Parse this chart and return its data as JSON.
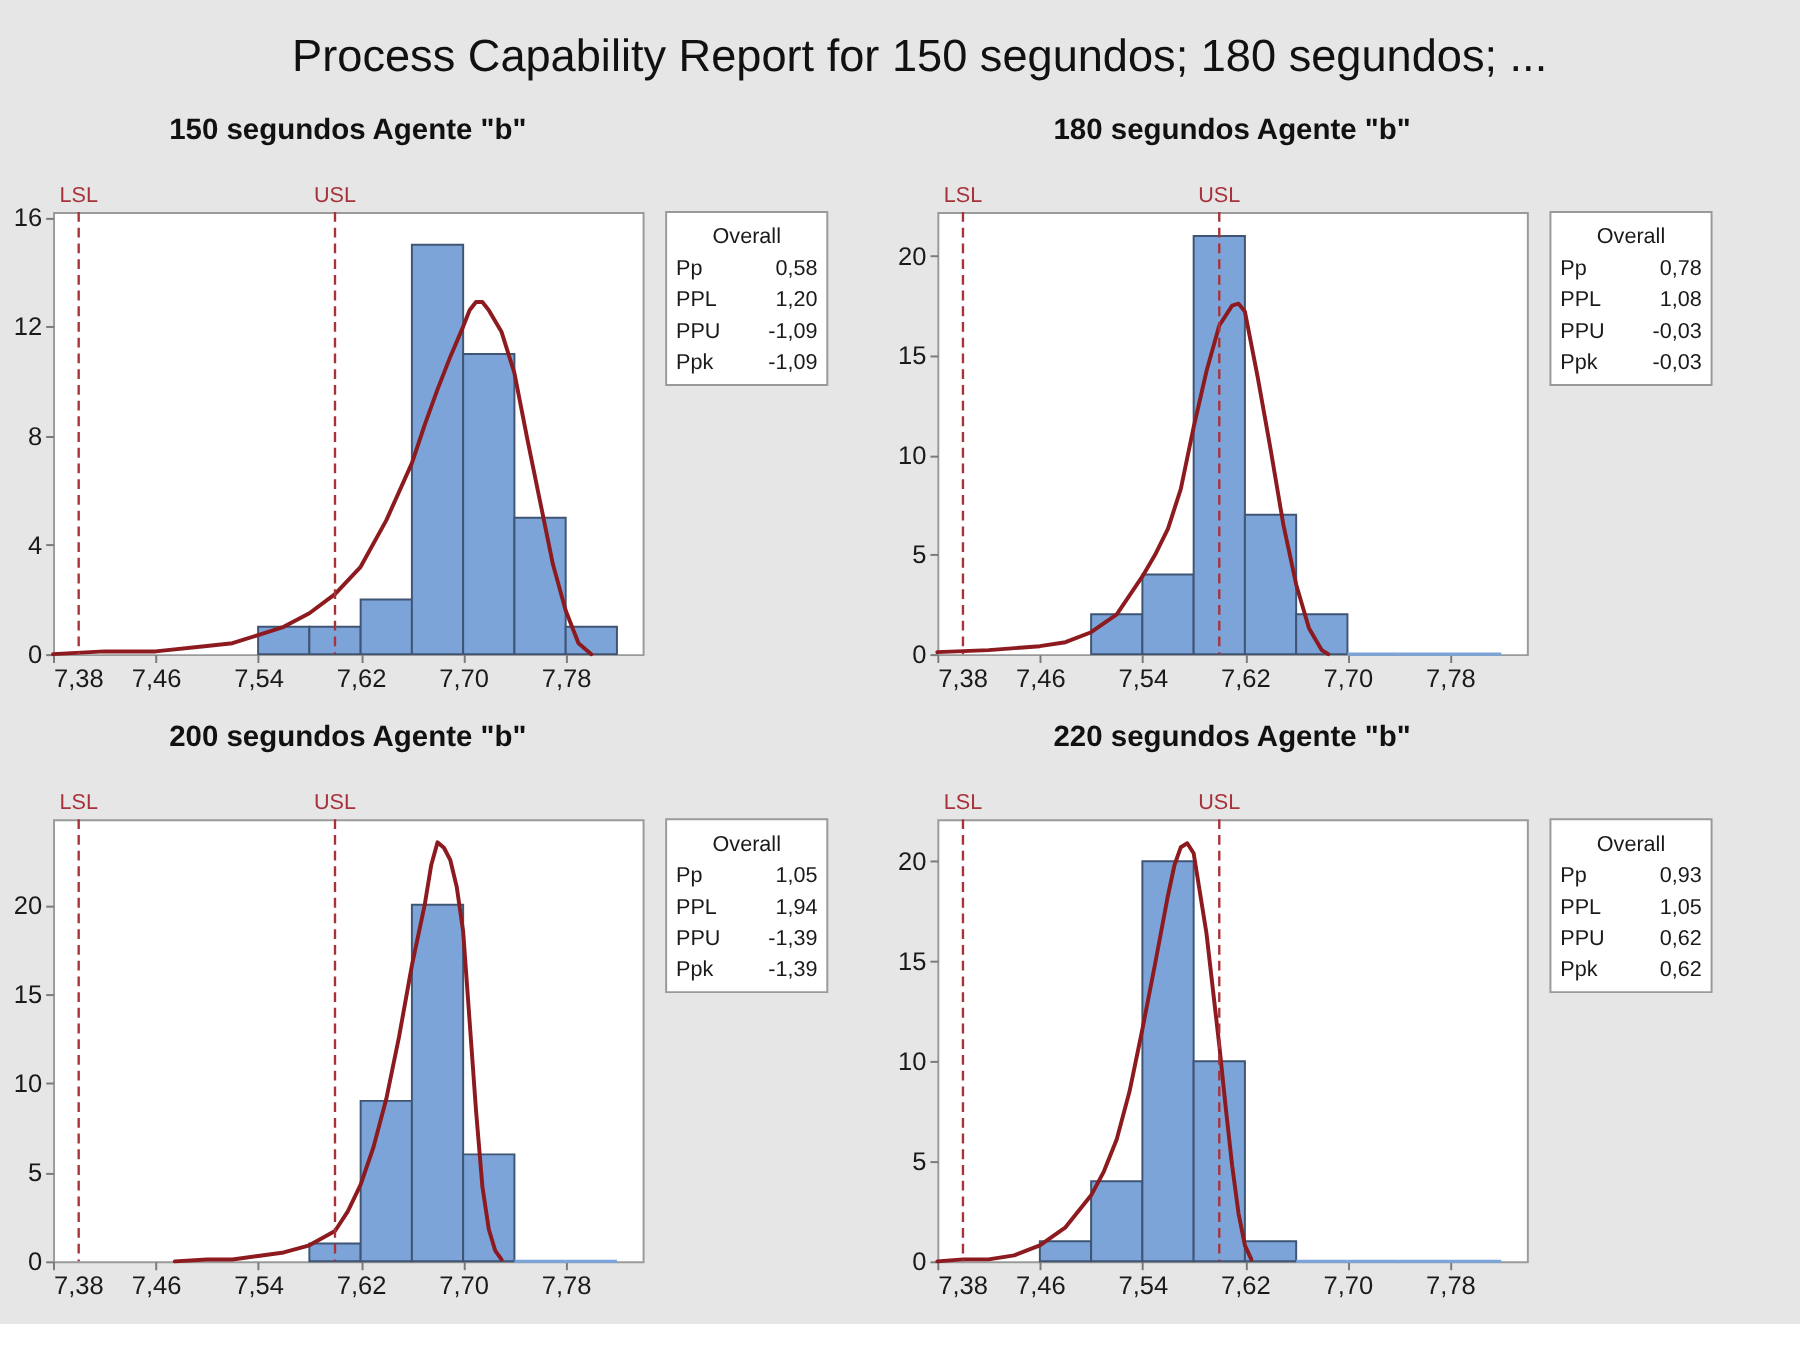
{
  "chart_data": [
    {
      "type": "other",
      "title": "Process Capability Report for 150 segundos; 180 segundos; ..."
    },
    {
      "type": "histogram",
      "title": "150 segundos Agente \"b\"",
      "series": [
        {
          "type": "histogram",
          "color": "#7ca4d9",
          "bins": [
            7.54,
            7.58,
            7.62,
            7.66,
            7.7,
            7.74,
            7.78,
            7.82
          ],
          "values": [
            1,
            1,
            2,
            15,
            11,
            5,
            1
          ]
        },
        {
          "type": "line",
          "color": "#8c1a1f",
          "x": [
            7.38,
            7.42,
            7.46,
            7.5,
            7.52,
            7.54,
            7.56,
            7.58,
            7.6,
            7.62,
            7.64,
            7.66,
            7.67,
            7.68,
            7.69,
            7.7,
            7.705,
            7.71,
            7.715,
            7.72,
            7.73,
            7.74,
            7.75,
            7.76,
            7.77,
            7.78,
            7.79,
            7.8
          ],
          "values": [
            0.0,
            0.1,
            0.1,
            0.3,
            0.4,
            0.7,
            1.0,
            1.5,
            2.2,
            3.2,
            4.9,
            7.0,
            8.4,
            9.7,
            10.9,
            12.0,
            12.6,
            12.9,
            12.9,
            12.6,
            11.8,
            10.3,
            7.9,
            5.6,
            3.3,
            1.6,
            0.4,
            0.0
          ]
        }
      ],
      "xlim": [
        7.38,
        7.84
      ],
      "xticks": [
        {
          "value": 7.38,
          "label": "7,38"
        },
        {
          "value": 7.46,
          "label": "7,46"
        },
        {
          "value": 7.54,
          "label": "7,54"
        },
        {
          "value": 7.62,
          "label": "7,62"
        },
        {
          "value": 7.7,
          "label": "7,70"
        },
        {
          "value": 7.78,
          "label": "7,78"
        }
      ],
      "ylim": [
        0,
        16.2
      ],
      "yticks": [
        0,
        4,
        8,
        12,
        16
      ],
      "ref_lines": [
        {
          "axis": "x",
          "value": 7.4,
          "label": "LSL",
          "color": "#a8323a",
          "line_style": "dashed"
        },
        {
          "axis": "x",
          "value": 7.6,
          "label": "USL",
          "color": "#a8323a",
          "line_style": "dashed"
        }
      ],
      "annotations": [
        "Overall",
        "Pp",
        "0,58",
        "PPL",
        "1,20",
        "PPU",
        "-1,09",
        "Ppk",
        "-1,09"
      ]
    },
    {
      "type": "histogram",
      "title": "180 segundos Agente \"b\"",
      "series": [
        {
          "type": "histogram",
          "color": "#7ca4d9",
          "bins": [
            7.5,
            7.54,
            7.58,
            7.62,
            7.66,
            7.7,
            7.74,
            7.78,
            7.82
          ],
          "values": [
            2,
            4,
            21,
            7,
            2,
            0,
            0,
            0
          ]
        },
        {
          "type": "line",
          "color": "#8c1a1f",
          "x": [
            7.38,
            7.42,
            7.46,
            7.48,
            7.5,
            7.52,
            7.54,
            7.55,
            7.56,
            7.57,
            7.58,
            7.59,
            7.6,
            7.61,
            7.615,
            7.62,
            7.63,
            7.64,
            7.65,
            7.66,
            7.67,
            7.68,
            7.685
          ],
          "values": [
            0.1,
            0.2,
            0.4,
            0.6,
            1.1,
            2.0,
            3.9,
            5.0,
            6.3,
            8.3,
            11.4,
            14.2,
            16.5,
            17.5,
            17.6,
            17.2,
            13.9,
            10.3,
            6.5,
            3.5,
            1.3,
            0.2,
            0.0
          ]
        }
      ],
      "xlim": [
        7.38,
        7.84
      ],
      "xticks": [
        {
          "value": 7.38,
          "label": "7,38"
        },
        {
          "value": 7.46,
          "label": "7,46"
        },
        {
          "value": 7.54,
          "label": "7,54"
        },
        {
          "value": 7.62,
          "label": "7,62"
        },
        {
          "value": 7.7,
          "label": "7,70"
        },
        {
          "value": 7.78,
          "label": "7,78"
        }
      ],
      "ylim": [
        0,
        22.2
      ],
      "yticks": [
        0,
        5,
        10,
        15,
        20
      ],
      "ref_lines": [
        {
          "axis": "x",
          "value": 7.4,
          "label": "LSL",
          "color": "#a8323a",
          "line_style": "dashed"
        },
        {
          "axis": "x",
          "value": 7.6,
          "label": "USL",
          "color": "#a8323a",
          "line_style": "dashed"
        }
      ],
      "annotations": [
        "Overall",
        "Pp",
        "0,78",
        "PPL",
        "1,08",
        "PPU",
        "-0,03",
        "Ppk",
        "-0,03"
      ]
    },
    {
      "type": "histogram",
      "title": "200 segundos Agente \"b\"",
      "series": [
        {
          "type": "histogram",
          "color": "#7ca4d9",
          "bins": [
            7.58,
            7.62,
            7.66,
            7.7,
            7.74,
            7.78,
            7.82
          ],
          "values": [
            1,
            9,
            20,
            6,
            0,
            0
          ]
        },
        {
          "type": "line",
          "color": "#8c1a1f",
          "x": [
            7.475,
            7.5,
            7.52,
            7.54,
            7.56,
            7.58,
            7.6,
            7.61,
            7.62,
            7.63,
            7.64,
            7.65,
            7.66,
            7.67,
            7.675,
            7.68,
            7.685,
            7.69,
            7.695,
            7.7,
            7.705,
            7.71,
            7.715,
            7.72,
            7.725,
            7.73
          ],
          "values": [
            0.0,
            0.1,
            0.1,
            0.3,
            0.5,
            0.9,
            1.7,
            2.8,
            4.3,
            6.4,
            9.1,
            12.6,
            16.6,
            20.0,
            22.2,
            23.5,
            23.2,
            22.5,
            21.0,
            18.5,
            13.5,
            8.5,
            4.2,
            1.8,
            0.6,
            0.1
          ]
        }
      ],
      "xlim": [
        7.38,
        7.84
      ],
      "xticks": [
        {
          "value": 7.38,
          "label": "7,38"
        },
        {
          "value": 7.46,
          "label": "7,46"
        },
        {
          "value": 7.54,
          "label": "7,54"
        },
        {
          "value": 7.62,
          "label": "7,62"
        },
        {
          "value": 7.7,
          "label": "7,70"
        },
        {
          "value": 7.78,
          "label": "7,78"
        }
      ],
      "ylim": [
        0,
        24.8
      ],
      "yticks": [
        0,
        5,
        10,
        15,
        20
      ],
      "ref_lines": [
        {
          "axis": "x",
          "value": 7.4,
          "label": "LSL",
          "color": "#a8323a",
          "line_style": "dashed"
        },
        {
          "axis": "x",
          "value": 7.6,
          "label": "USL",
          "color": "#a8323a",
          "line_style": "dashed"
        }
      ],
      "annotations": [
        "Overall",
        "Pp",
        "1,05",
        "PPL",
        "1,94",
        "PPU",
        "-1,39",
        "Ppk",
        "-1,39"
      ]
    },
    {
      "type": "histogram",
      "title": "220 segundos Agente \"b\"",
      "series": [
        {
          "type": "histogram",
          "color": "#7ca4d9",
          "bins": [
            7.46,
            7.5,
            7.54,
            7.58,
            7.62,
            7.66,
            7.7,
            7.74,
            7.78,
            7.82
          ],
          "values": [
            1,
            4,
            20,
            10,
            1,
            0,
            0,
            0,
            0
          ]
        },
        {
          "type": "line",
          "color": "#8c1a1f",
          "x": [
            7.38,
            7.4,
            7.42,
            7.44,
            7.46,
            7.48,
            7.5,
            7.51,
            7.52,
            7.53,
            7.54,
            7.55,
            7.56,
            7.565,
            7.57,
            7.575,
            7.58,
            7.59,
            7.6,
            7.605,
            7.61,
            7.615,
            7.62,
            7.625
          ],
          "values": [
            0.0,
            0.1,
            0.1,
            0.3,
            0.8,
            1.7,
            3.3,
            4.5,
            6.1,
            8.5,
            11.6,
            14.9,
            18.3,
            19.8,
            20.7,
            20.9,
            20.4,
            16.4,
            10.8,
            7.7,
            4.8,
            2.4,
            0.8,
            0.1
          ]
        }
      ],
      "xlim": [
        7.38,
        7.84
      ],
      "xticks": [
        {
          "value": 7.38,
          "label": "7,38"
        },
        {
          "value": 7.46,
          "label": "7,46"
        },
        {
          "value": 7.54,
          "label": "7,54"
        },
        {
          "value": 7.62,
          "label": "7,62"
        },
        {
          "value": 7.7,
          "label": "7,70"
        },
        {
          "value": 7.78,
          "label": "7,78"
        }
      ],
      "ylim": [
        0,
        22.1
      ],
      "yticks": [
        0,
        5,
        10,
        15,
        20
      ],
      "ref_lines": [
        {
          "axis": "x",
          "value": 7.4,
          "label": "LSL",
          "color": "#a8323a",
          "line_style": "dashed"
        },
        {
          "axis": "x",
          "value": 7.6,
          "label": "USL",
          "color": "#a8323a",
          "line_style": "dashed"
        }
      ],
      "annotations": [
        "Overall",
        "Pp",
        "0,93",
        "PPL",
        "1,05",
        "PPU",
        "0,62",
        "Ppk",
        "0,62"
      ]
    }
  ]
}
